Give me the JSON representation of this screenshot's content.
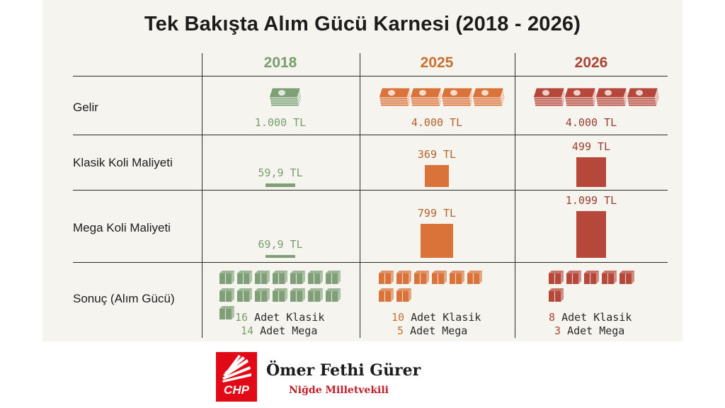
{
  "chart_data": {
    "type": "table",
    "title": "Tek Bakışta Alım Gücü Karnesi (2018 - 2026)",
    "years": [
      "2018",
      "2025",
      "2026"
    ],
    "row_labels": {
      "income": "Gelir",
      "classic": "Klasik Koli Maliyeti",
      "mega": "Mega Koli Maliyeti",
      "result": "Sonuç (Alım Gücü)"
    },
    "income": {
      "values": [
        1000,
        4000,
        4000
      ],
      "labels": [
        "1.000 TL",
        "4.000 TL",
        "4.000 TL"
      ],
      "stack_icons": [
        1,
        4,
        4
      ]
    },
    "classic_cost": {
      "values": [
        59.9,
        369,
        499
      ],
      "labels": [
        "59,9 TL",
        "369 TL",
        "499 TL"
      ]
    },
    "mega_cost": {
      "values": [
        69.9,
        799,
        1099
      ],
      "labels": [
        "69,9 TL",
        "799 TL",
        "1.099 TL"
      ]
    },
    "result": {
      "classic_count": [
        16,
        10,
        8
      ],
      "mega_count": [
        14,
        5,
        3
      ],
      "classic_text": [
        "Adet Klasik",
        "Adet Klasik",
        "Adet Klasik"
      ],
      "mega_text": [
        "Adet Mega",
        "Adet Mega",
        "Adet Mega"
      ]
    },
    "colors": [
      "#7fa076",
      "#d9733a",
      "#b5483b"
    ],
    "year_colors": [
      "#7a9d6e",
      "#c9702f",
      "#a84336"
    ]
  },
  "footer": {
    "party": "CHP",
    "name": "Ömer Fethi Gürer",
    "title": "Niğde Milletvekili"
  }
}
